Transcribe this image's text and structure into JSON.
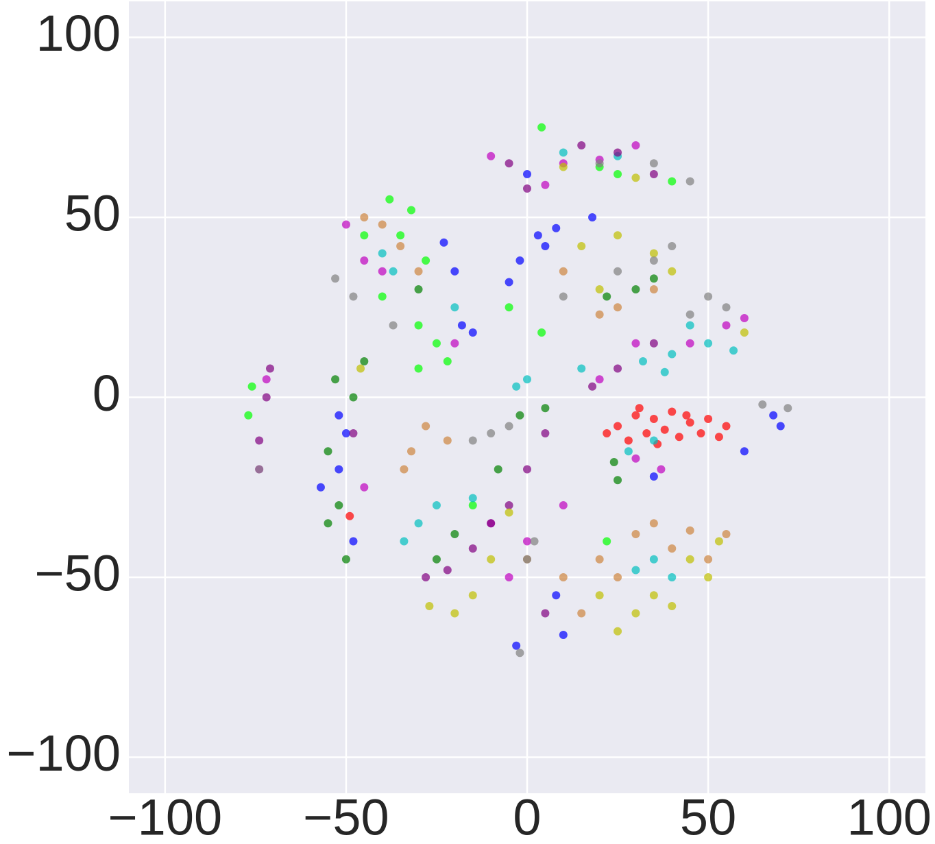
{
  "chart_data": {
    "type": "scatter",
    "xlim": [
      -110,
      110
    ],
    "ylim": [
      -110,
      110
    ],
    "xticks": [
      {
        "value": -100,
        "label": "−100"
      },
      {
        "value": -50,
        "label": "−50"
      },
      0,
      50,
      100
    ],
    "yticks": [
      {
        "value": -100,
        "label": "−100"
      },
      {
        "value": -50,
        "label": "−50"
      },
      0,
      50,
      100
    ],
    "grid": true,
    "background": "#eaeaf2",
    "series": [
      {
        "color": "#ff0000",
        "x": [
          25,
          30,
          35,
          40,
          45,
          28,
          33,
          38,
          50,
          55,
          42,
          22,
          48,
          -49,
          31,
          36,
          44,
          53
        ],
        "y": [
          -8,
          -5,
          -6,
          -4,
          -7,
          -12,
          -10,
          -9,
          -6,
          -8,
          -11,
          -10,
          -10,
          -33,
          -3,
          -13,
          -5,
          -11
        ]
      },
      {
        "color": "#0000ff",
        "x": [
          3,
          5,
          8,
          18,
          -2,
          -5,
          -23,
          -20,
          -18,
          -15,
          -50,
          -52,
          -57,
          -48,
          -52,
          68,
          70,
          60,
          35,
          -3,
          8,
          10,
          0
        ],
        "y": [
          45,
          42,
          47,
          50,
          38,
          32,
          43,
          35,
          20,
          18,
          -10,
          -20,
          -25,
          -40,
          -5,
          -5,
          -8,
          -15,
          -22,
          -69,
          -55,
          -66,
          62
        ]
      },
      {
        "color": "#008000",
        "x": [
          -55,
          -52,
          -50,
          -48,
          -53,
          -45,
          -55,
          25,
          24,
          30,
          35,
          22,
          -25,
          -20,
          -8,
          -2,
          5,
          -30
        ],
        "y": [
          -15,
          -30,
          -45,
          0,
          5,
          10,
          -35,
          -23,
          -18,
          30,
          33,
          28,
          -45,
          -38,
          -20,
          -5,
          -3,
          30
        ]
      },
      {
        "color": "#00ff00",
        "x": [
          -38,
          -32,
          -35,
          -40,
          -30,
          -25,
          -22,
          -30,
          -45,
          -28,
          -77,
          -76,
          4,
          25,
          40,
          20,
          -5,
          4,
          22,
          -15
        ],
        "y": [
          55,
          52,
          45,
          28,
          20,
          15,
          10,
          8,
          45,
          38,
          -5,
          3,
          75,
          62,
          60,
          64,
          25,
          18,
          -40,
          -30
        ]
      },
      {
        "color": "#00bfbf",
        "x": [
          40,
          50,
          57,
          32,
          38,
          15,
          45,
          28,
          35,
          -37,
          -20,
          -40,
          40,
          35,
          30,
          -30,
          -25,
          -34,
          -15,
          10,
          25,
          -3,
          0
        ],
        "y": [
          12,
          15,
          13,
          10,
          7,
          8,
          20,
          -15,
          -12,
          35,
          25,
          40,
          -50,
          -45,
          -48,
          -35,
          -30,
          -40,
          -28,
          68,
          67,
          3,
          5
        ]
      },
      {
        "color": "#bf00bf",
        "x": [
          -10,
          10,
          30,
          20,
          5,
          -50,
          -45,
          -40,
          -20,
          60,
          55,
          45,
          30,
          20,
          37,
          30,
          0,
          10,
          -5,
          -10,
          -74,
          -72,
          -45
        ],
        "y": [
          67,
          65,
          70,
          66,
          59,
          48,
          38,
          35,
          15,
          22,
          20,
          15,
          15,
          5,
          -20,
          -17,
          -40,
          -30,
          -50,
          -35,
          -20,
          5,
          -25
        ]
      },
      {
        "color": "#800080",
        "x": [
          -5,
          15,
          25,
          35,
          0,
          -28,
          -22,
          -10,
          0,
          5,
          -15,
          -5,
          25,
          18,
          35,
          -72,
          -74,
          -71,
          -48,
          5
        ],
        "y": [
          65,
          70,
          68,
          62,
          58,
          -50,
          -48,
          -35,
          -20,
          -10,
          -42,
          -30,
          8,
          3,
          15,
          0,
          -12,
          8,
          -10,
          -60
        ]
      },
      {
        "color": "#bfbf00",
        "x": [
          -27,
          -20,
          -15,
          -10,
          -5,
          30,
          40,
          50,
          53,
          45,
          35,
          25,
          20,
          15,
          25,
          35,
          40,
          20,
          10,
          30,
          -46,
          60
        ],
        "y": [
          -58,
          -60,
          -55,
          -45,
          -32,
          -60,
          -58,
          -50,
          -40,
          -45,
          -55,
          -65,
          -55,
          42,
          45,
          40,
          35,
          30,
          64,
          61,
          8,
          18
        ]
      },
      {
        "color": "#cd853f",
        "x": [
          20,
          30,
          35,
          45,
          55,
          40,
          25,
          15,
          50,
          10,
          -40,
          -35,
          -45,
          -30,
          -32,
          -28,
          -22,
          -34,
          10,
          25,
          35,
          20,
          0
        ],
        "y": [
          -45,
          -38,
          -35,
          -37,
          -38,
          -42,
          -50,
          -60,
          -45,
          -50,
          48,
          42,
          50,
          35,
          -15,
          -8,
          -12,
          -20,
          35,
          25,
          30,
          23,
          -45
        ]
      },
      {
        "color": "#808080",
        "x": [
          20,
          35,
          45,
          -53,
          -48,
          -37,
          25,
          35,
          40,
          10,
          50,
          55,
          45,
          72,
          65,
          -10,
          -15,
          -5,
          2,
          0,
          -2,
          -74
        ],
        "y": [
          65,
          65,
          60,
          33,
          28,
          20,
          35,
          38,
          42,
          28,
          28,
          25,
          23,
          -3,
          -2,
          -10,
          -12,
          -8,
          -40,
          -45,
          -71,
          -20
        ]
      }
    ]
  }
}
